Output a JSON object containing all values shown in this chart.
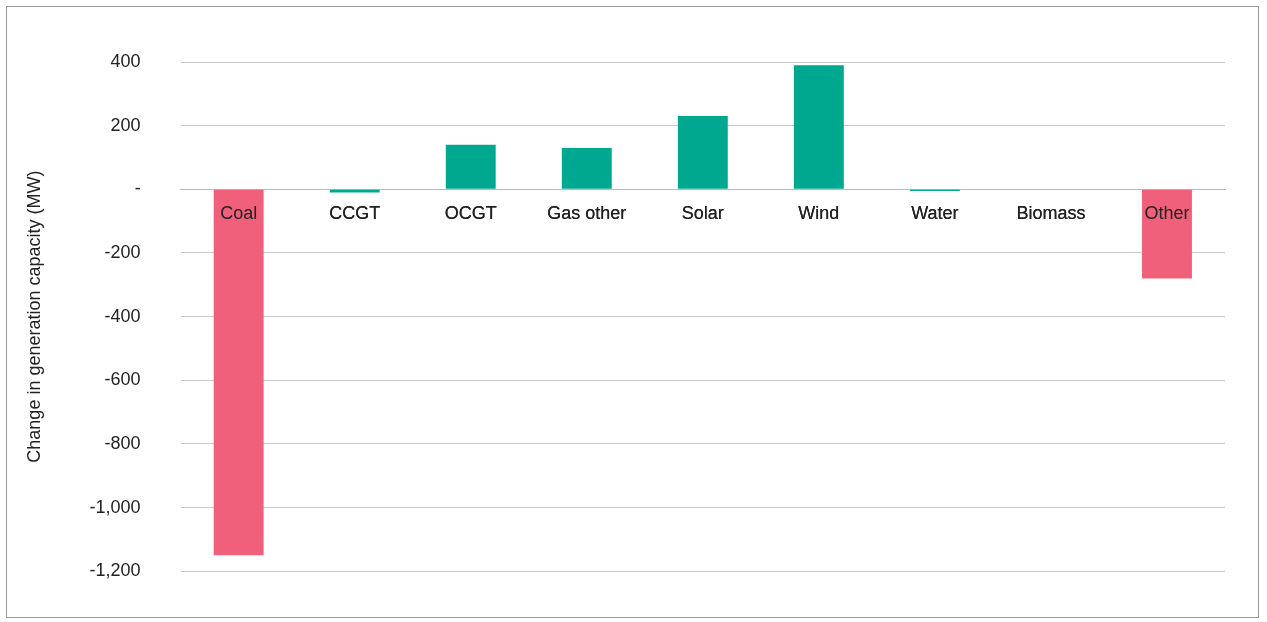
{
  "chart_data": {
    "type": "bar",
    "ylabel": "Change in generation capacity (MW)",
    "categories": [
      "Coal",
      "CCGT",
      "OCGT",
      "Gas other",
      "Solar",
      "Wind",
      "Water",
      "Biomass",
      "Other"
    ],
    "values": [
      -1150,
      -10,
      140,
      130,
      230,
      390,
      -5,
      0,
      -280
    ],
    "colors": [
      "#f0607a",
      "#00a88f",
      "#00a88f",
      "#00a88f",
      "#00a88f",
      "#00a88f",
      "#00a88f",
      "#00a88f",
      "#f0607a"
    ],
    "ylim": [
      -1200,
      400
    ],
    "yticks": [
      {
        "value": -1200,
        "label": "-1,200"
      },
      {
        "value": -1000,
        "label": "-1,000"
      },
      -800,
      -600,
      -400,
      -200,
      {
        "value": 0,
        "label": "-"
      },
      200,
      400
    ],
    "grid": "y",
    "legend": false
  }
}
